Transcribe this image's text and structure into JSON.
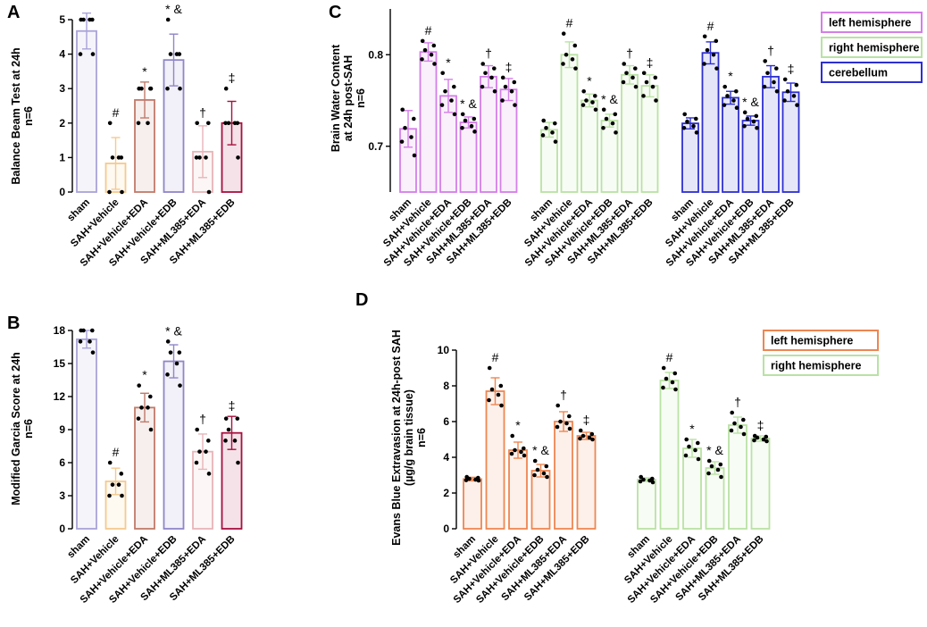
{
  "panels": [
    {
      "letter": "A",
      "id": "a",
      "ylabel": [
        "Balance Beam Test at 24h",
        "n=6"
      ],
      "ylim": [
        0,
        5
      ],
      "ticks": [
        0,
        1,
        2,
        3,
        4,
        5
      ],
      "categories": [
        "sham",
        "SAH+Vehicle",
        "SAH+Vehicle+EDA",
        "SAH+Vehicle+EDB",
        "SAH+ML385+EDA",
        "SAH+ML385+EDB"
      ],
      "groups": [
        {
          "name": "",
          "bars": [
            {
              "value": 4.67,
              "sd": 0.52,
              "points": [
                5,
                5,
                5,
                5,
                4,
                4
              ],
              "color": "#a8a3d8",
              "ann": ""
            },
            {
              "value": 0.83,
              "sd": 0.75,
              "points": [
                2,
                1,
                1,
                1,
                0,
                0
              ],
              "color": "#f6c98e",
              "ann": "#"
            },
            {
              "value": 2.67,
              "sd": 0.52,
              "points": [
                3,
                3,
                3,
                2,
                2,
                3
              ],
              "color": "#c07a6a",
              "ann": "*"
            },
            {
              "value": 3.83,
              "sd": 0.75,
              "points": [
                5,
                4,
                4,
                4,
                3,
                3
              ],
              "color": "#8f86c8",
              "ann": "* &"
            },
            {
              "value": 1.17,
              "sd": 0.75,
              "points": [
                2,
                2,
                1,
                1,
                1,
                0
              ],
              "color": "#e8b4b8",
              "ann": "†"
            },
            {
              "value": 2.0,
              "sd": 0.63,
              "points": [
                3,
                2,
                2,
                2,
                2,
                1
              ],
              "color": "#a8103e",
              "ann": "‡"
            }
          ]
        }
      ]
    },
    {
      "letter": "B",
      "id": "b",
      "ylabel": [
        "Modified Garcia Score at 24h",
        "n=6"
      ],
      "ylim": [
        0,
        18
      ],
      "ticks": [
        0,
        3,
        6,
        9,
        12,
        15,
        18
      ],
      "categories": [
        "sham",
        "SAH+Vehicle",
        "SAH+Vehicle+EDA",
        "SAH+Vehicle+EDB",
        "SAH+ML385+EDA",
        "SAH+ML385+EDB"
      ],
      "groups": [
        {
          "name": "",
          "bars": [
            {
              "value": 17.2,
              "sd": 0.8,
              "points": [
                18,
                18,
                18,
                17,
                17,
                16
              ],
              "color": "#a8a3d8",
              "ann": ""
            },
            {
              "value": 4.3,
              "sd": 1.2,
              "points": [
                6,
                5,
                4,
                4,
                3,
                3
              ],
              "color": "#f6c98e",
              "ann": "#"
            },
            {
              "value": 11.0,
              "sd": 1.3,
              "points": [
                13,
                12,
                11,
                11,
                10,
                9
              ],
              "color": "#c07a6a",
              "ann": "*"
            },
            {
              "value": 15.2,
              "sd": 1.5,
              "points": [
                17,
                16,
                16,
                15,
                14,
                13
              ],
              "color": "#8f86c8",
              "ann": "* &"
            },
            {
              "value": 7.0,
              "sd": 1.6,
              "points": [
                9,
                8,
                7,
                7,
                6,
                5
              ],
              "color": "#e8b4b8",
              "ann": "†"
            },
            {
              "value": 8.7,
              "sd": 1.5,
              "points": [
                10,
                10,
                9,
                8,
                8,
                6
              ],
              "color": "#a8103e",
              "ann": "‡"
            }
          ]
        }
      ]
    },
    {
      "letter": "C",
      "id": "c",
      "ylabel": [
        "Brain Water Content",
        "at 24h post-SAH",
        "n=6"
      ],
      "ylim": [
        0.65,
        0.85
      ],
      "ticks": [
        0.7,
        0.8
      ],
      "categories": [
        "sham",
        "SAH+Vehicle",
        "SAH+Vehicle+EDA",
        "SAH+Vehicle+EDB",
        "SAH+ML385+EDA",
        "SAH+ML385+EDB"
      ],
      "groups": [
        {
          "name": "left hemisphere",
          "color": "#d47ee8",
          "bars": [
            {
              "value": 0.719,
              "sd": 0.02,
              "points": [
                0.74,
                0.73,
                0.72,
                0.71,
                0.705,
                0.69
              ],
              "ann": ""
            },
            {
              "value": 0.803,
              "sd": 0.01,
              "points": [
                0.815,
                0.81,
                0.805,
                0.8,
                0.795,
                0.79
              ],
              "ann": "#"
            },
            {
              "value": 0.755,
              "sd": 0.018,
              "points": [
                0.78,
                0.765,
                0.76,
                0.75,
                0.745,
                0.735
              ],
              "ann": "*"
            },
            {
              "value": 0.726,
              "sd": 0.006,
              "points": [
                0.735,
                0.73,
                0.728,
                0.722,
                0.72,
                0.716
              ],
              "ann": "* &"
            },
            {
              "value": 0.776,
              "sd": 0.012,
              "points": [
                0.79,
                0.785,
                0.78,
                0.775,
                0.765,
                0.76
              ],
              "ann": "†"
            },
            {
              "value": 0.762,
              "sd": 0.012,
              "points": [
                0.775,
                0.77,
                0.765,
                0.76,
                0.75,
                0.745
              ],
              "ann": "‡"
            }
          ]
        },
        {
          "name": "right hemisphere",
          "color": "#b9e2a4",
          "bars": [
            {
              "value": 0.718,
              "sd": 0.008,
              "points": [
                0.728,
                0.725,
                0.72,
                0.715,
                0.712,
                0.705
              ],
              "ann": ""
            },
            {
              "value": 0.8,
              "sd": 0.014,
              "points": [
                0.823,
                0.81,
                0.8,
                0.795,
                0.79,
                0.785
              ],
              "ann": "#"
            },
            {
              "value": 0.75,
              "sd": 0.007,
              "points": [
                0.76,
                0.755,
                0.75,
                0.748,
                0.745,
                0.74
              ],
              "ann": "*"
            },
            {
              "value": 0.728,
              "sd": 0.007,
              "points": [
                0.74,
                0.735,
                0.73,
                0.725,
                0.72,
                0.715
              ],
              "ann": "* &"
            },
            {
              "value": 0.778,
              "sd": 0.01,
              "points": [
                0.79,
                0.785,
                0.78,
                0.775,
                0.77,
                0.765
              ],
              "ann": "†"
            },
            {
              "value": 0.766,
              "sd": 0.012,
              "points": [
                0.78,
                0.775,
                0.77,
                0.765,
                0.755,
                0.75
              ],
              "ann": "‡"
            }
          ]
        },
        {
          "name": "cerebellum",
          "color": "#2d2fd0",
          "bars": [
            {
              "value": 0.725,
              "sd": 0.006,
              "points": [
                0.735,
                0.73,
                0.727,
                0.722,
                0.72,
                0.715
              ],
              "ann": ""
            },
            {
              "value": 0.802,
              "sd": 0.012,
              "points": [
                0.82,
                0.815,
                0.805,
                0.8,
                0.79,
                0.785
              ],
              "ann": "#"
            },
            {
              "value": 0.753,
              "sd": 0.007,
              "points": [
                0.765,
                0.76,
                0.755,
                0.75,
                0.745,
                0.742
              ],
              "ann": "*"
            },
            {
              "value": 0.728,
              "sd": 0.005,
              "points": [
                0.737,
                0.733,
                0.73,
                0.727,
                0.722,
                0.72
              ],
              "ann": "* &"
            },
            {
              "value": 0.776,
              "sd": 0.012,
              "points": [
                0.793,
                0.785,
                0.78,
                0.77,
                0.765,
                0.76
              ],
              "ann": "†"
            },
            {
              "value": 0.759,
              "sd": 0.01,
              "points": [
                0.773,
                0.767,
                0.76,
                0.755,
                0.75,
                0.745
              ],
              "ann": "‡"
            }
          ]
        }
      ]
    },
    {
      "letter": "D",
      "id": "d",
      "ylabel": [
        "Evans Blue Extravasion at 24h-post SAH",
        "(µg/g brain tissue)",
        "n=6"
      ],
      "ylim": [
        0,
        10
      ],
      "ticks": [
        0,
        2,
        4,
        6,
        8,
        10
      ],
      "categories": [
        "sham",
        "SAH+Vehicle",
        "SAH+Vehicle+EDA",
        "SAH+Vehicle+EDB",
        "SAH+ML385+EDA",
        "SAH+ML385+EDB"
      ],
      "groups": [
        {
          "name": "left hemisphere",
          "color": "#ee8651",
          "bars": [
            {
              "value": 2.78,
              "sd": 0.1,
              "points": [
                2.9,
                2.85,
                2.8,
                2.75,
                2.72,
                2.7
              ],
              "ann": ""
            },
            {
              "value": 7.7,
              "sd": 0.75,
              "points": [
                9.0,
                8.0,
                7.8,
                7.5,
                7.2,
                6.9
              ],
              "ann": "#"
            },
            {
              "value": 4.4,
              "sd": 0.45,
              "points": [
                5.2,
                4.5,
                4.4,
                4.3,
                4.2,
                4.1
              ],
              "ann": "*"
            },
            {
              "value": 3.25,
              "sd": 0.35,
              "points": [
                3.8,
                3.5,
                3.3,
                3.1,
                3.0,
                2.9
              ],
              "ann": "* &"
            },
            {
              "value": 6.0,
              "sd": 0.55,
              "points": [
                6.9,
                6.3,
                6.0,
                5.9,
                5.7,
                5.6
              ],
              "ann": "†"
            },
            {
              "value": 5.2,
              "sd": 0.2,
              "points": [
                5.5,
                5.3,
                5.2,
                5.1,
                5.05,
                5.0
              ],
              "ann": "‡"
            }
          ]
        },
        {
          "name": "right hemisphere",
          "color": "#b9e2a4",
          "bars": [
            {
              "value": 2.75,
              "sd": 0.1,
              "points": [
                2.9,
                2.8,
                2.75,
                2.7,
                2.65,
                2.6
              ],
              "ann": ""
            },
            {
              "value": 8.3,
              "sd": 0.45,
              "points": [
                9.0,
                8.7,
                8.4,
                8.2,
                7.9,
                7.8
              ],
              "ann": "#"
            },
            {
              "value": 4.5,
              "sd": 0.5,
              "points": [
                5.0,
                4.8,
                4.6,
                4.4,
                4.1,
                3.9
              ],
              "ann": "*"
            },
            {
              "value": 3.4,
              "sd": 0.35,
              "points": [
                3.8,
                3.6,
                3.5,
                3.3,
                3.1,
                2.9
              ],
              "ann": "* &"
            },
            {
              "value": 5.8,
              "sd": 0.45,
              "points": [
                6.5,
                6.1,
                5.9,
                5.7,
                5.5,
                5.3
              ],
              "ann": "†"
            },
            {
              "value": 5.05,
              "sd": 0.15,
              "points": [
                5.2,
                5.15,
                5.1,
                5.0,
                4.95,
                4.9
              ],
              "ann": "‡"
            }
          ]
        }
      ]
    }
  ],
  "chart_data": [
    {
      "type": "bar",
      "title": "A",
      "ylabel": "Balance Beam Test at 24h n=6",
      "xlabel": "",
      "categories": [
        "sham",
        "SAH+Vehicle",
        "SAH+Vehicle+EDA",
        "SAH+Vehicle+EDB",
        "SAH+ML385+EDA",
        "SAH+ML385+EDB"
      ],
      "values": [
        4.67,
        0.83,
        2.67,
        3.83,
        1.17,
        2.0
      ],
      "ylim": [
        0,
        5
      ],
      "grid": false
    },
    {
      "type": "bar",
      "title": "B",
      "ylabel": "Modified Garcia Score at 24h n=6",
      "xlabel": "",
      "categories": [
        "sham",
        "SAH+Vehicle",
        "SAH+Vehicle+EDA",
        "SAH+Vehicle+EDB",
        "SAH+ML385+EDA",
        "SAH+ML385+EDB"
      ],
      "values": [
        17.2,
        4.3,
        11.0,
        15.2,
        7.0,
        8.7
      ],
      "ylim": [
        0,
        18
      ],
      "grid": false
    },
    {
      "type": "bar",
      "title": "C",
      "ylabel": "Brain Water Content at 24h post-SAH n=6",
      "xlabel": "",
      "categories": [
        "sham",
        "SAH+Vehicle",
        "SAH+Vehicle+EDA",
        "SAH+Vehicle+EDB",
        "SAH+ML385+EDA",
        "SAH+ML385+EDB"
      ],
      "series": [
        {
          "name": "left hemisphere",
          "values": [
            0.719,
            0.803,
            0.755,
            0.726,
            0.776,
            0.762
          ]
        },
        {
          "name": "right hemisphere",
          "values": [
            0.718,
            0.8,
            0.75,
            0.728,
            0.778,
            0.766
          ]
        },
        {
          "name": "cerebellum",
          "values": [
            0.725,
            0.802,
            0.753,
            0.728,
            0.776,
            0.759
          ]
        }
      ],
      "ylim": [
        0.65,
        0.85
      ],
      "legend": "top-right",
      "grid": false
    },
    {
      "type": "bar",
      "title": "D",
      "ylabel": "Evans Blue Extravasion at 24h-post SAH (µg/g brain tissue) n=6",
      "xlabel": "",
      "categories": [
        "sham",
        "SAH+Vehicle",
        "SAH+Vehicle+EDA",
        "SAH+Vehicle+EDB",
        "SAH+ML385+EDA",
        "SAH+ML385+EDB"
      ],
      "series": [
        {
          "name": "left hemisphere",
          "values": [
            2.78,
            7.7,
            4.4,
            3.25,
            6.0,
            5.2
          ]
        },
        {
          "name": "right hemisphere",
          "values": [
            2.75,
            8.3,
            4.5,
            3.4,
            5.8,
            5.05
          ]
        }
      ],
      "ylim": [
        0,
        10
      ],
      "legend": "top-right",
      "grid": false
    }
  ]
}
